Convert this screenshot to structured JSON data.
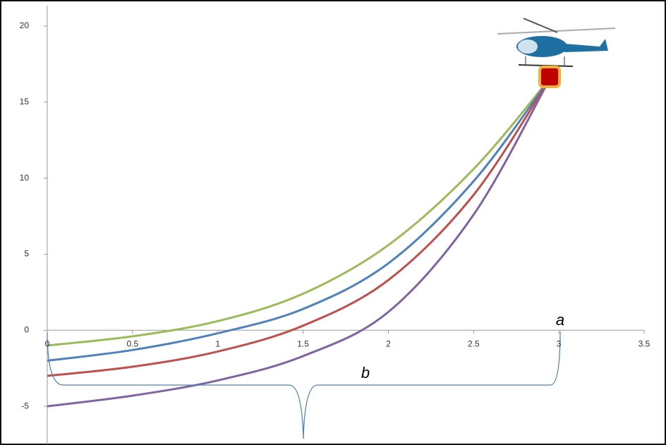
{
  "chart_data": {
    "type": "line",
    "x": [
      0,
      0.5,
      1,
      1.5,
      2,
      2.5,
      2.95
    ],
    "series": [
      {
        "color": "#9bbb59",
        "values": [
          -1,
          -0.4,
          0.6,
          2.4,
          5.6,
          10.6,
          16.6
        ]
      },
      {
        "color": "#4f81bd",
        "values": [
          -2,
          -1.3,
          -0.2,
          1.4,
          4.4,
          9.8,
          16.6
        ]
      },
      {
        "color": "#c0504d",
        "values": [
          -3,
          -2.4,
          -1.4,
          0.3,
          3.3,
          8.9,
          16.6
        ]
      },
      {
        "color": "#8064a2",
        "values": [
          -5,
          -4.3,
          -3.3,
          -1.7,
          1.2,
          7.6,
          16.6
        ]
      }
    ],
    "xlim": [
      0,
      3.5
    ],
    "xticks": [
      0,
      0.5,
      1,
      1.5,
      2,
      2.5,
      3,
      3.5
    ],
    "ylim": [
      -7.5,
      21.3
    ],
    "yticks": [
      -5,
      0,
      5,
      10,
      15,
      20
    ],
    "annotations": [
      "a",
      "b"
    ]
  }
}
